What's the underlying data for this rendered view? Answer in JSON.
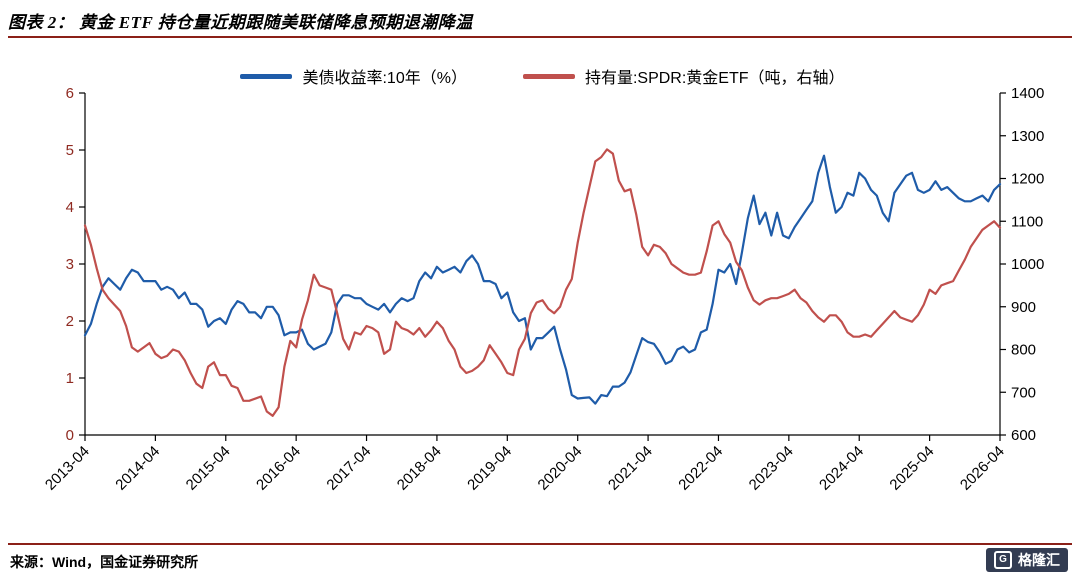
{
  "header": {
    "title": "图表 2： 黄金 ETF 持仓量近期跟随美联储降息预期退潮降温"
  },
  "footer": {
    "source": "来源：Wind，国金证券研究所",
    "logo_letter": "G",
    "logo_text": "格隆汇"
  },
  "colors": {
    "rule": "#8B2018",
    "axis": "#000000",
    "left_axis_label": "#8F2A21",
    "right_axis_label": "#000000",
    "x_axis_label": "#000000",
    "series_blue": "#1F5CA9",
    "series_red": "#C0504D",
    "logo_bg": "#333C52"
  },
  "chart_data": {
    "type": "line",
    "title": "",
    "frequency": "monthly",
    "x_range": [
      "2013-04",
      "2026-04"
    ],
    "n_points": 157,
    "grid": false,
    "legend_position": "top-center",
    "left_axis": {
      "min": 0,
      "max": 6,
      "ticks": [
        0,
        1,
        2,
        3,
        4,
        5,
        6
      ]
    },
    "right_axis": {
      "min": 600,
      "max": 1400,
      "ticks": [
        600,
        700,
        800,
        900,
        1000,
        1100,
        1200,
        1300,
        1400
      ]
    },
    "x_ticks": [
      {
        "index": 0,
        "label": "2013-04"
      },
      {
        "index": 12,
        "label": "2014-04"
      },
      {
        "index": 24,
        "label": "2015-04"
      },
      {
        "index": 36,
        "label": "2016-04"
      },
      {
        "index": 48,
        "label": "2017-04"
      },
      {
        "index": 60,
        "label": "2018-04"
      },
      {
        "index": 72,
        "label": "2019-04"
      },
      {
        "index": 84,
        "label": "2020-04"
      },
      {
        "index": 96,
        "label": "2021-04"
      },
      {
        "index": 108,
        "label": "2022-04"
      },
      {
        "index": 120,
        "label": "2023-04"
      },
      {
        "index": 132,
        "label": "2024-04"
      },
      {
        "index": 144,
        "label": "2025-04"
      },
      {
        "index": 156,
        "label": "2026-04"
      }
    ],
    "series": [
      {
        "name": "美债收益率:10年（%）",
        "axis": "left",
        "color": "#1F5CA9",
        "values": [
          1.75,
          1.95,
          2.3,
          2.6,
          2.75,
          2.65,
          2.55,
          2.75,
          2.9,
          2.85,
          2.7,
          2.7,
          2.7,
          2.55,
          2.6,
          2.55,
          2.4,
          2.5,
          2.3,
          2.3,
          2.2,
          1.9,
          2.0,
          2.05,
          1.95,
          2.2,
          2.35,
          2.3,
          2.15,
          2.15,
          2.05,
          2.25,
          2.25,
          2.1,
          1.75,
          1.8,
          1.8,
          1.85,
          1.6,
          1.5,
          1.55,
          1.6,
          1.8,
          2.3,
          2.45,
          2.45,
          2.4,
          2.4,
          2.3,
          2.25,
          2.2,
          2.3,
          2.15,
          2.3,
          2.4,
          2.35,
          2.4,
          2.7,
          2.85,
          2.75,
          2.95,
          2.85,
          2.9,
          2.95,
          2.85,
          3.05,
          3.15,
          3.0,
          2.7,
          2.7,
          2.65,
          2.4,
          2.5,
          2.15,
          2.0,
          2.05,
          1.5,
          1.7,
          1.7,
          1.8,
          1.9,
          1.5,
          1.15,
          0.7,
          0.64,
          0.65,
          0.66,
          0.55,
          0.7,
          0.68,
          0.85,
          0.85,
          0.92,
          1.1,
          1.4,
          1.7,
          1.63,
          1.6,
          1.45,
          1.25,
          1.3,
          1.5,
          1.55,
          1.45,
          1.5,
          1.8,
          1.85,
          2.3,
          2.9,
          2.85,
          3.0,
          2.65,
          3.2,
          3.8,
          4.2,
          3.7,
          3.9,
          3.5,
          3.9,
          3.5,
          3.45,
          3.65,
          3.8,
          3.95,
          4.1,
          4.6,
          4.9,
          4.35,
          3.9,
          4.0,
          4.25,
          4.2,
          4.6,
          4.5,
          4.3,
          4.2,
          3.9,
          3.75,
          4.25,
          4.4,
          4.55,
          4.6,
          4.3,
          4.25,
          4.3,
          4.45,
          4.3,
          4.35,
          4.25,
          4.15,
          4.1,
          4.1,
          4.15,
          4.2,
          4.1,
          4.3,
          4.4
        ]
      },
      {
        "name": "持有量:SPDR:黄金ETF（吨，右轴）",
        "axis": "right",
        "color": "#C0504D",
        "values": [
          1090,
          1045,
          990,
          940,
          920,
          905,
          890,
          855,
          805,
          795,
          805,
          815,
          790,
          780,
          785,
          800,
          795,
          775,
          745,
          720,
          710,
          760,
          770,
          740,
          740,
          715,
          710,
          680,
          680,
          685,
          690,
          655,
          645,
          665,
          760,
          820,
          805,
          870,
          915,
          975,
          950,
          945,
          940,
          885,
          825,
          800,
          840,
          835,
          855,
          850,
          840,
          790,
          800,
          865,
          850,
          845,
          835,
          850,
          830,
          845,
          865,
          850,
          820,
          800,
          760,
          745,
          750,
          760,
          775,
          810,
          790,
          770,
          745,
          740,
          800,
          825,
          885,
          910,
          915,
          895,
          885,
          900,
          940,
          965,
          1050,
          1120,
          1180,
          1240,
          1250,
          1268,
          1258,
          1195,
          1170,
          1175,
          1115,
          1040,
          1020,
          1045,
          1040,
          1025,
          1000,
          990,
          980,
          975,
          975,
          980,
          1030,
          1090,
          1100,
          1070,
          1050,
          1005,
          985,
          945,
          915,
          905,
          915,
          920,
          920,
          925,
          930,
          940,
          920,
          910,
          890,
          875,
          865,
          880,
          880,
          865,
          840,
          830,
          830,
          835,
          830,
          845,
          860,
          875,
          890,
          875,
          870,
          865,
          880,
          905,
          940,
          930,
          950,
          955,
          960,
          985,
          1010,
          1040,
          1060,
          1080,
          1090,
          1100,
          1085
        ]
      }
    ]
  }
}
